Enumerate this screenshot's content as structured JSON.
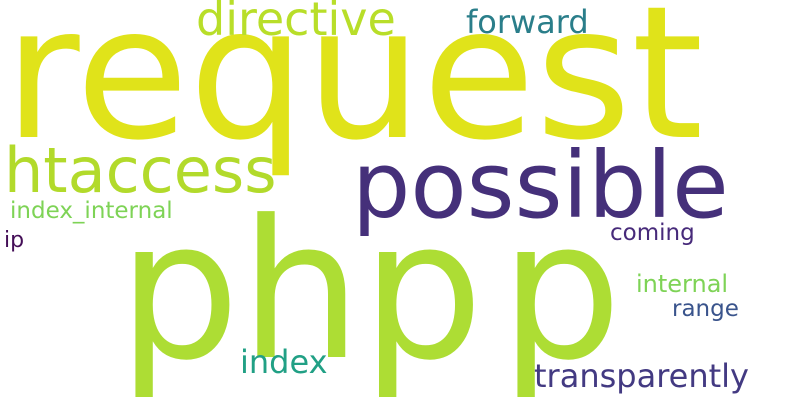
{
  "words": {
    "request": {
      "text": "request",
      "color": "#e0e31a"
    },
    "php": {
      "text": "php",
      "color": "#addd34"
    },
    "p": {
      "text": "p",
      "color": "#addd34"
    },
    "possible": {
      "text": "possible",
      "color": "#45307a"
    },
    "htaccess": {
      "text": "htaccess",
      "color": "#b2da2b"
    },
    "directive": {
      "text": "directive",
      "color": "#b8de29"
    },
    "forward": {
      "text": "forward",
      "color": "#2a7e8a"
    },
    "index_internal": {
      "text": "index_internal",
      "color": "#7ed356"
    },
    "ip": {
      "text": "ip",
      "color": "#440e57"
    },
    "coming": {
      "text": "coming",
      "color": "#472a7a"
    },
    "internal": {
      "text": "internal",
      "color": "#7ed356"
    },
    "range": {
      "text": "range",
      "color": "#3a548c"
    },
    "index": {
      "text": "index",
      "color": "#21a085"
    },
    "transparently": {
      "text": "transparently",
      "color": "#433a82"
    }
  }
}
